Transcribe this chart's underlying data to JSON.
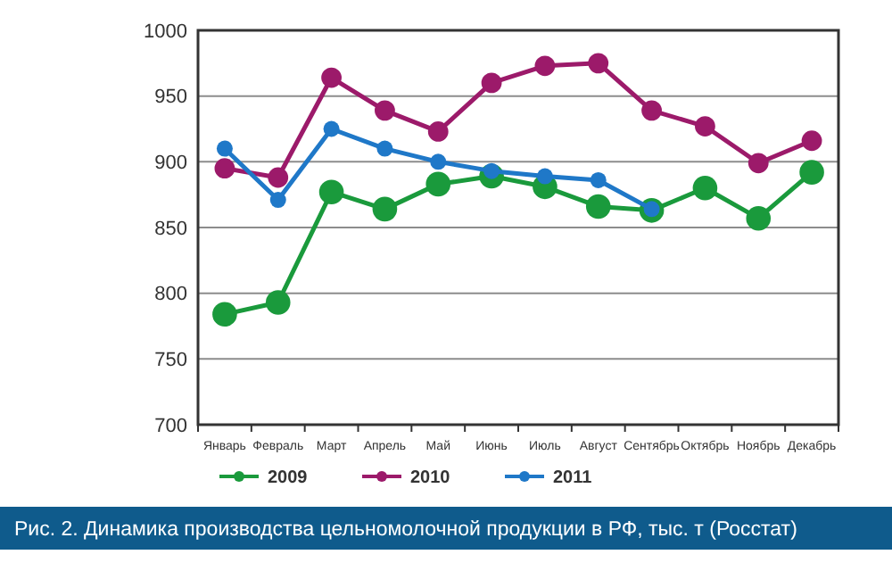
{
  "chart_data": {
    "type": "line",
    "title": "Рис. 2. Динамика производства цельномолочной продукции в РФ, тыс. т (Росстат)",
    "categories": [
      "Январь",
      "Февраль",
      "Март",
      "Апрель",
      "Май",
      "Июнь",
      "Июль",
      "Август",
      "Сентябрь",
      "Октябрь",
      "Ноябрь",
      "Декабрь"
    ],
    "series": [
      {
        "name": "2009",
        "color": "#1a9a3c",
        "values": [
          784,
          793,
          877,
          864,
          883,
          889,
          881,
          866,
          863,
          880,
          857,
          892
        ]
      },
      {
        "name": "2010",
        "color": "#9c1a6a",
        "values": [
          895,
          888,
          964,
          939,
          923,
          960,
          973,
          975,
          939,
          927,
          899,
          916
        ]
      },
      {
        "name": "2011",
        "color": "#1f78c8",
        "values": [
          910,
          871,
          925,
          910,
          900,
          893,
          889,
          886,
          864,
          null,
          null,
          null
        ]
      }
    ],
    "ylim": [
      700,
      1000
    ],
    "yticks": [
      700,
      750,
      800,
      850,
      900,
      950,
      1000
    ],
    "grid": "y",
    "legend": "bottom",
    "marker": "circle",
    "line_style": "solid"
  }
}
